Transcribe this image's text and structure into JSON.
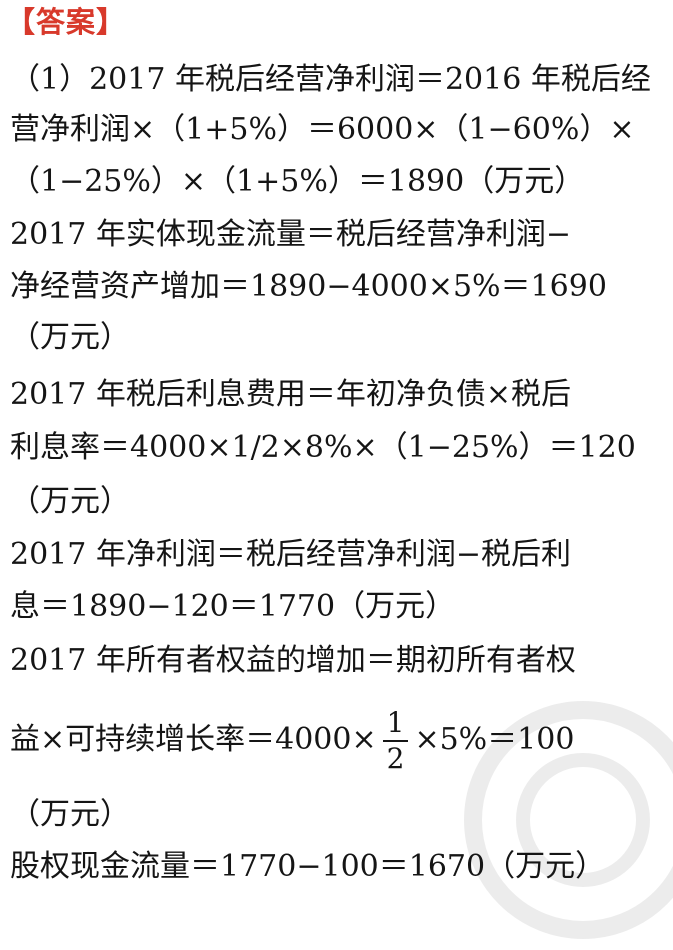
{
  "heading": "【答案】",
  "lines": [
    "（1）2017 年税后经营净利润＝2016 年税后经",
    "营净利润×（1+5%）＝6000×（1−60%）×",
    "（1−25%）×（1+5%）＝1890（万元）",
    "2017 年实体现金流量＝税后经营净利润−",
    "净经营资产增加＝1890−4000×5%＝1690",
    "（万元）",
    "2017 年税后利息费用＝年初净负债×税后",
    "利息率＝4000×1/2×8%×（1−25%）＝120",
    "（万元）",
    "2017 年净利润＝税后经营净利润−税后利",
    "息＝1890−120＝1770（万元）",
    "2017 年所有者权益的增加＝期初所有者权"
  ],
  "fraction_line": {
    "before": "益×可持续增长率＝4000×",
    "numerator": "1",
    "denominator": "2",
    "after": "×5%＝100"
  },
  "tail_lines": [
    "（万元）",
    "股权现金流量＝1770−100＝1670（万元）"
  ],
  "colors": {
    "heading": "#d8392b",
    "text": "#151515"
  }
}
